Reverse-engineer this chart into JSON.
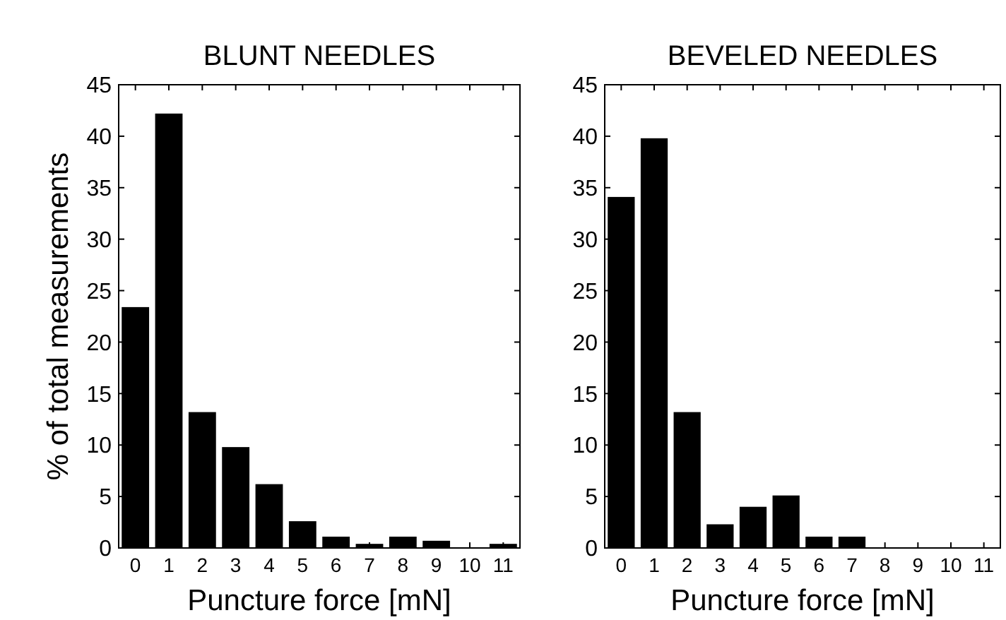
{
  "chart_data": [
    {
      "type": "bar",
      "title": "BLUNT NEEDLES",
      "xlabel": "Puncture force [mN]",
      "ylabel": "% of total measurements",
      "categories": [
        "0",
        "1",
        "2",
        "3",
        "4",
        "5",
        "6",
        "7",
        "8",
        "9",
        "10",
        "11"
      ],
      "values": [
        23.4,
        42.2,
        13.2,
        9.8,
        6.2,
        2.6,
        1.1,
        0.4,
        1.1,
        0.7,
        0,
        0.4
      ],
      "color": "#000000",
      "ylim": [
        0,
        45
      ],
      "yticks": [
        0,
        5,
        10,
        15,
        20,
        25,
        30,
        35,
        40,
        45
      ],
      "grid": false
    },
    {
      "type": "bar",
      "title": "BEVELED NEEDLES",
      "xlabel": "Puncture force [mN]",
      "categories": [
        "0",
        "1",
        "2",
        "3",
        "4",
        "5",
        "6",
        "7",
        "8",
        "9",
        "10",
        "11"
      ],
      "values": [
        34.1,
        39.8,
        13.2,
        2.3,
        4.0,
        5.1,
        1.1,
        1.1,
        0,
        0,
        0,
        0
      ],
      "color": "#000000",
      "ylim": [
        0,
        45
      ],
      "yticks": [
        0,
        5,
        10,
        15,
        20,
        25,
        30,
        35,
        40,
        45
      ],
      "grid": false
    }
  ]
}
